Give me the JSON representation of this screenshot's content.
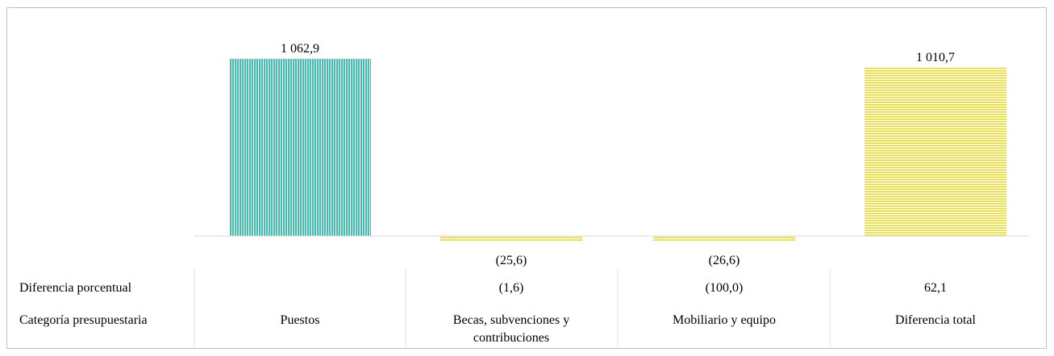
{
  "chart_data": {
    "type": "bar",
    "categories": [
      "Puestos",
      "Becas, subvenciones y contribuciones",
      "Mobiliario y equipo",
      "Diferencia total"
    ],
    "category_lines": [
      [
        "Puestos"
      ],
      [
        "Becas, subvenciones y",
        "contribuciones"
      ],
      [
        "Mobiliario y equipo"
      ],
      [
        "Diferencia total"
      ]
    ],
    "values": [
      1062.9,
      -25.6,
      -26.6,
      1010.7
    ],
    "value_labels": [
      "1 062,9",
      "(25,6)",
      "(26,6)",
      "1 010,7"
    ],
    "bar_styles": [
      "teal-vertical-stripes",
      "yellow-horizontal-stripes",
      "yellow-horizontal-stripes",
      "yellow-horizontal-stripes"
    ],
    "colors": {
      "teal": "#3fbfae",
      "yellow": "#e8df5a",
      "baseline": "#d9d9d9",
      "divider": "#e6e6e6"
    },
    "table": {
      "rows": [
        {
          "label": "Diferencia porcentual",
          "values": [
            "",
            "(1,6)",
            "(100,0)",
            "62,1"
          ]
        },
        {
          "label": "Categoría presupuestaria",
          "values": [
            "Puestos",
            "Becas, subvenciones y contribuciones",
            "Mobiliario y equipo",
            "Diferencia total"
          ]
        }
      ]
    }
  }
}
